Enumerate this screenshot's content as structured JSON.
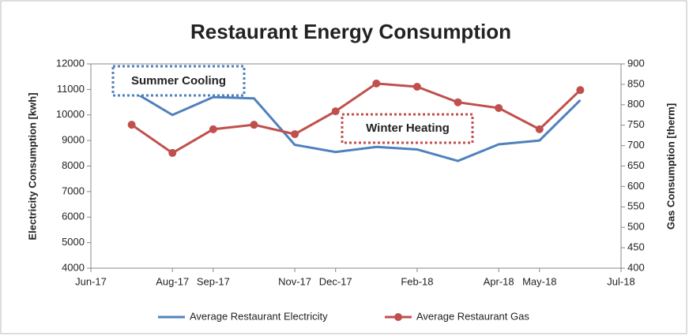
{
  "chart_data": {
    "type": "line",
    "title": "Restaurant Energy Consumption",
    "y_label": "Electricity Consumption [kwh]",
    "y2_label": "Gas Consumption [therm]",
    "x": [
      "2017-07",
      "2017-08",
      "2017-09",
      "2017-10",
      "2017-11",
      "2017-12",
      "2018-01",
      "2018-02",
      "2018-03",
      "2018-04",
      "2018-05",
      "2018-06"
    ],
    "xlim": [
      "2017-06",
      "2018-07"
    ],
    "xticks": [
      {
        "value": "2017-06",
        "label": "Jun-17"
      },
      {
        "value": "2017-08",
        "label": "Aug-17"
      },
      {
        "value": "2017-09",
        "label": "Sep-17"
      },
      {
        "value": "2017-11",
        "label": "Nov-17"
      },
      {
        "value": "2017-12",
        "label": "Dec-17"
      },
      {
        "value": "2018-02",
        "label": "Feb-18"
      },
      {
        "value": "2018-04",
        "label": "Apr-18"
      },
      {
        "value": "2018-05",
        "label": "May-18"
      },
      {
        "value": "2018-07",
        "label": "Jul-18"
      }
    ],
    "ylim": [
      4000,
      12000
    ],
    "yticks": [
      4000,
      5000,
      6000,
      7000,
      8000,
      9000,
      10000,
      11000,
      12000
    ],
    "y2lim": [
      400,
      900
    ],
    "y2ticks": [
      400,
      450,
      500,
      550,
      600,
      650,
      700,
      750,
      800,
      850,
      900
    ],
    "series": [
      {
        "name": "Average Restaurant Electricity",
        "color": "#4f81bd",
        "markers": false,
        "values": [
          10950,
          10000,
          10700,
          10650,
          8830,
          8550,
          8750,
          8650,
          8200,
          8850,
          9000,
          10580
        ]
      },
      {
        "name": "Average Restaurant Gas",
        "color": "#c0504d",
        "markers": true,
        "axis": "y2",
        "values": [
          751,
          682,
          740,
          751,
          728,
          784,
          852,
          844,
          806,
          792,
          740,
          836
        ]
      }
    ],
    "annotations": [
      "Summer Cooling",
      "Winter Heating"
    ],
    "legend": "bottom"
  }
}
